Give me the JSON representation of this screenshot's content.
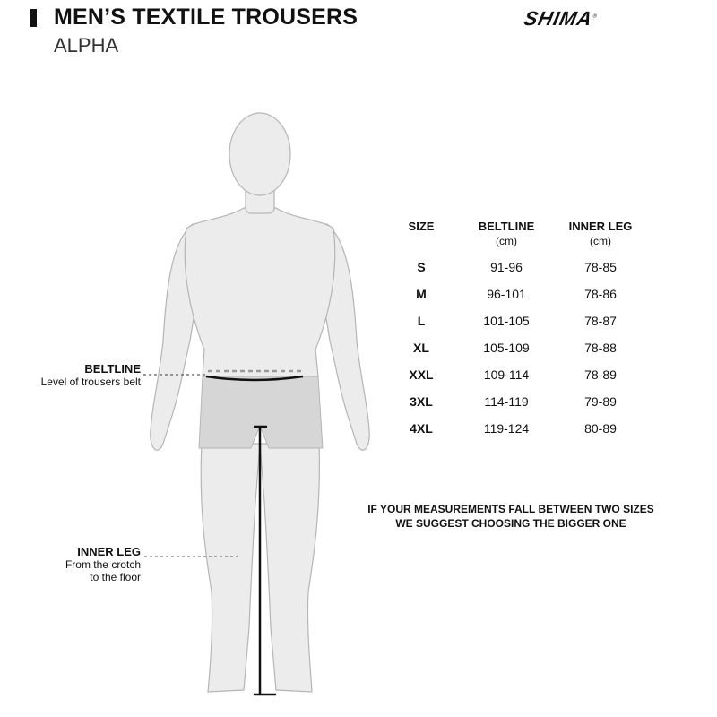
{
  "header": {
    "title": "MEN’S TEXTILE TROUSERS",
    "subtitle": "ALPHA",
    "logo_text": "SHIMA"
  },
  "labels": {
    "beltline": {
      "title": "BELTLINE",
      "desc": "Level of trousers belt"
    },
    "inner_leg": {
      "title": "INNER LEG",
      "desc1": "From the crotch",
      "desc2": "to the floor"
    }
  },
  "table": {
    "headers": [
      {
        "label": "SIZE",
        "unit": ""
      },
      {
        "label": "BELTLINE",
        "unit": "(cm)"
      },
      {
        "label": "INNER LEG",
        "unit": "(cm)"
      }
    ],
    "rows": [
      [
        "S",
        "91-96",
        "78-85"
      ],
      [
        "M",
        "96-101",
        "78-86"
      ],
      [
        "L",
        "101-105",
        "78-87"
      ],
      [
        "XL",
        "105-109",
        "78-88"
      ],
      [
        "XXL",
        "109-114",
        "78-89"
      ],
      [
        "3XL",
        "114-119",
        "79-89"
      ],
      [
        "4XL",
        "119-124",
        "80-89"
      ]
    ]
  },
  "note": {
    "line1": "IF YOUR MEASUREMENTS FALL BETWEEN TWO SIZES",
    "line2": "WE SUGGEST CHOOSING THE BIGGER ONE"
  },
  "colors": {
    "body": "#ececec",
    "outline": "#b5b5b5",
    "shorts": "#d6d6d6",
    "text": "#111111"
  }
}
